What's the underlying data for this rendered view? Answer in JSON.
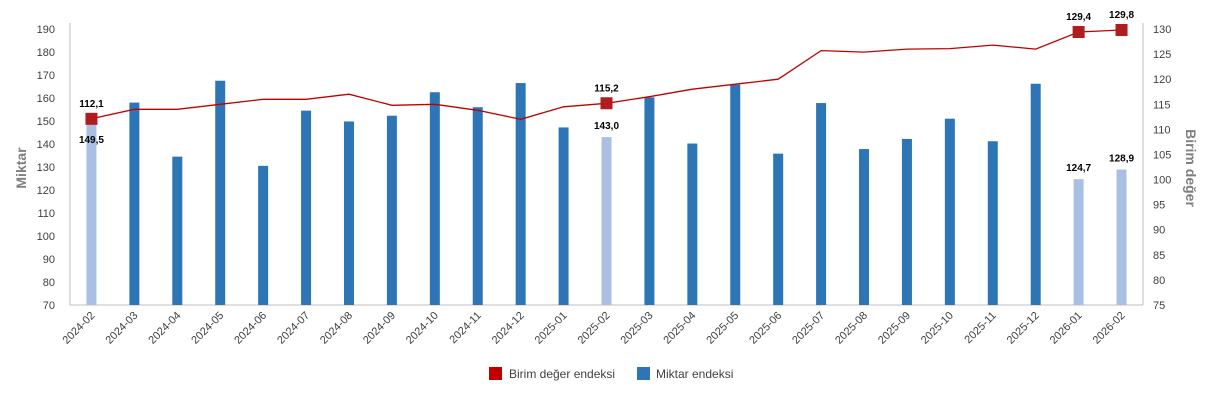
{
  "chart_data": {
    "type": "bar",
    "categories": [
      "2024-02",
      "2024-03",
      "2024-04",
      "2024-05",
      "2024-06",
      "2024-07",
      "2024-08",
      "2024-09",
      "2024-10",
      "2024-11",
      "2024-12",
      "2025-01",
      "2025-02",
      "2025-03",
      "2025-04",
      "2025-05",
      "2025-06",
      "2025-07",
      "2025-08",
      "2025-09",
      "2025-10",
      "2025-11",
      "2025-12",
      "2026-01",
      "2026-02"
    ],
    "series": [
      {
        "name": "Miktar endeksi",
        "type": "bar",
        "axis": "left",
        "color": "#2e75b6",
        "highlight_color": "#a9c0e4",
        "values": [
          149.5,
          158,
          134.5,
          167.5,
          130.5,
          154.5,
          149.8,
          152.3,
          162.5,
          156,
          166.5,
          147.2,
          143.0,
          160.3,
          140.2,
          165.8,
          135.8,
          157.8,
          137.8,
          142.2,
          151,
          141.2,
          166.2,
          124.7,
          128.9
        ],
        "highlighted": [
          0,
          12,
          23,
          24
        ]
      },
      {
        "name": "Birim değer endeksi",
        "type": "line",
        "axis": "right",
        "color": "#c00000",
        "values": [
          112.1,
          114,
          114,
          115,
          116,
          116,
          117,
          114.8,
          115,
          113.8,
          112,
          114.5,
          115.2,
          116.5,
          118,
          119,
          120,
          125.7,
          125.4,
          126,
          126.1,
          126.8,
          126,
          129.4,
          129.8
        ],
        "marked": [
          0,
          12,
          23,
          24
        ]
      }
    ],
    "bar_labels": [
      {
        "index": 0,
        "text": "149,5"
      },
      {
        "index": 12,
        "text": "143,0"
      },
      {
        "index": 23,
        "text": "124,7"
      },
      {
        "index": 24,
        "text": "128,9"
      }
    ],
    "line_labels": [
      {
        "index": 0,
        "text": "112,1"
      },
      {
        "index": 12,
        "text": "115,2"
      },
      {
        "index": 23,
        "text": "129,4"
      },
      {
        "index": 24,
        "text": "129,8"
      }
    ],
    "ylabel": "Miktar",
    "ylabel_right": "Birim değer",
    "ylim": [
      70,
      190
    ],
    "ylim_right": [
      75,
      130
    ],
    "yticks": [
      "70",
      "80",
      "90",
      "100",
      "110",
      "120",
      "130",
      "140",
      "150",
      "160",
      "170",
      "180",
      "190"
    ],
    "yticks_right": [
      "75",
      "80",
      "85",
      "90",
      "95",
      "100",
      "105",
      "110",
      "115",
      "120",
      "125",
      "130"
    ],
    "legend": [
      "Birim değer endeksi",
      "Miktar endeksi"
    ],
    "legend_position": "bottom"
  }
}
